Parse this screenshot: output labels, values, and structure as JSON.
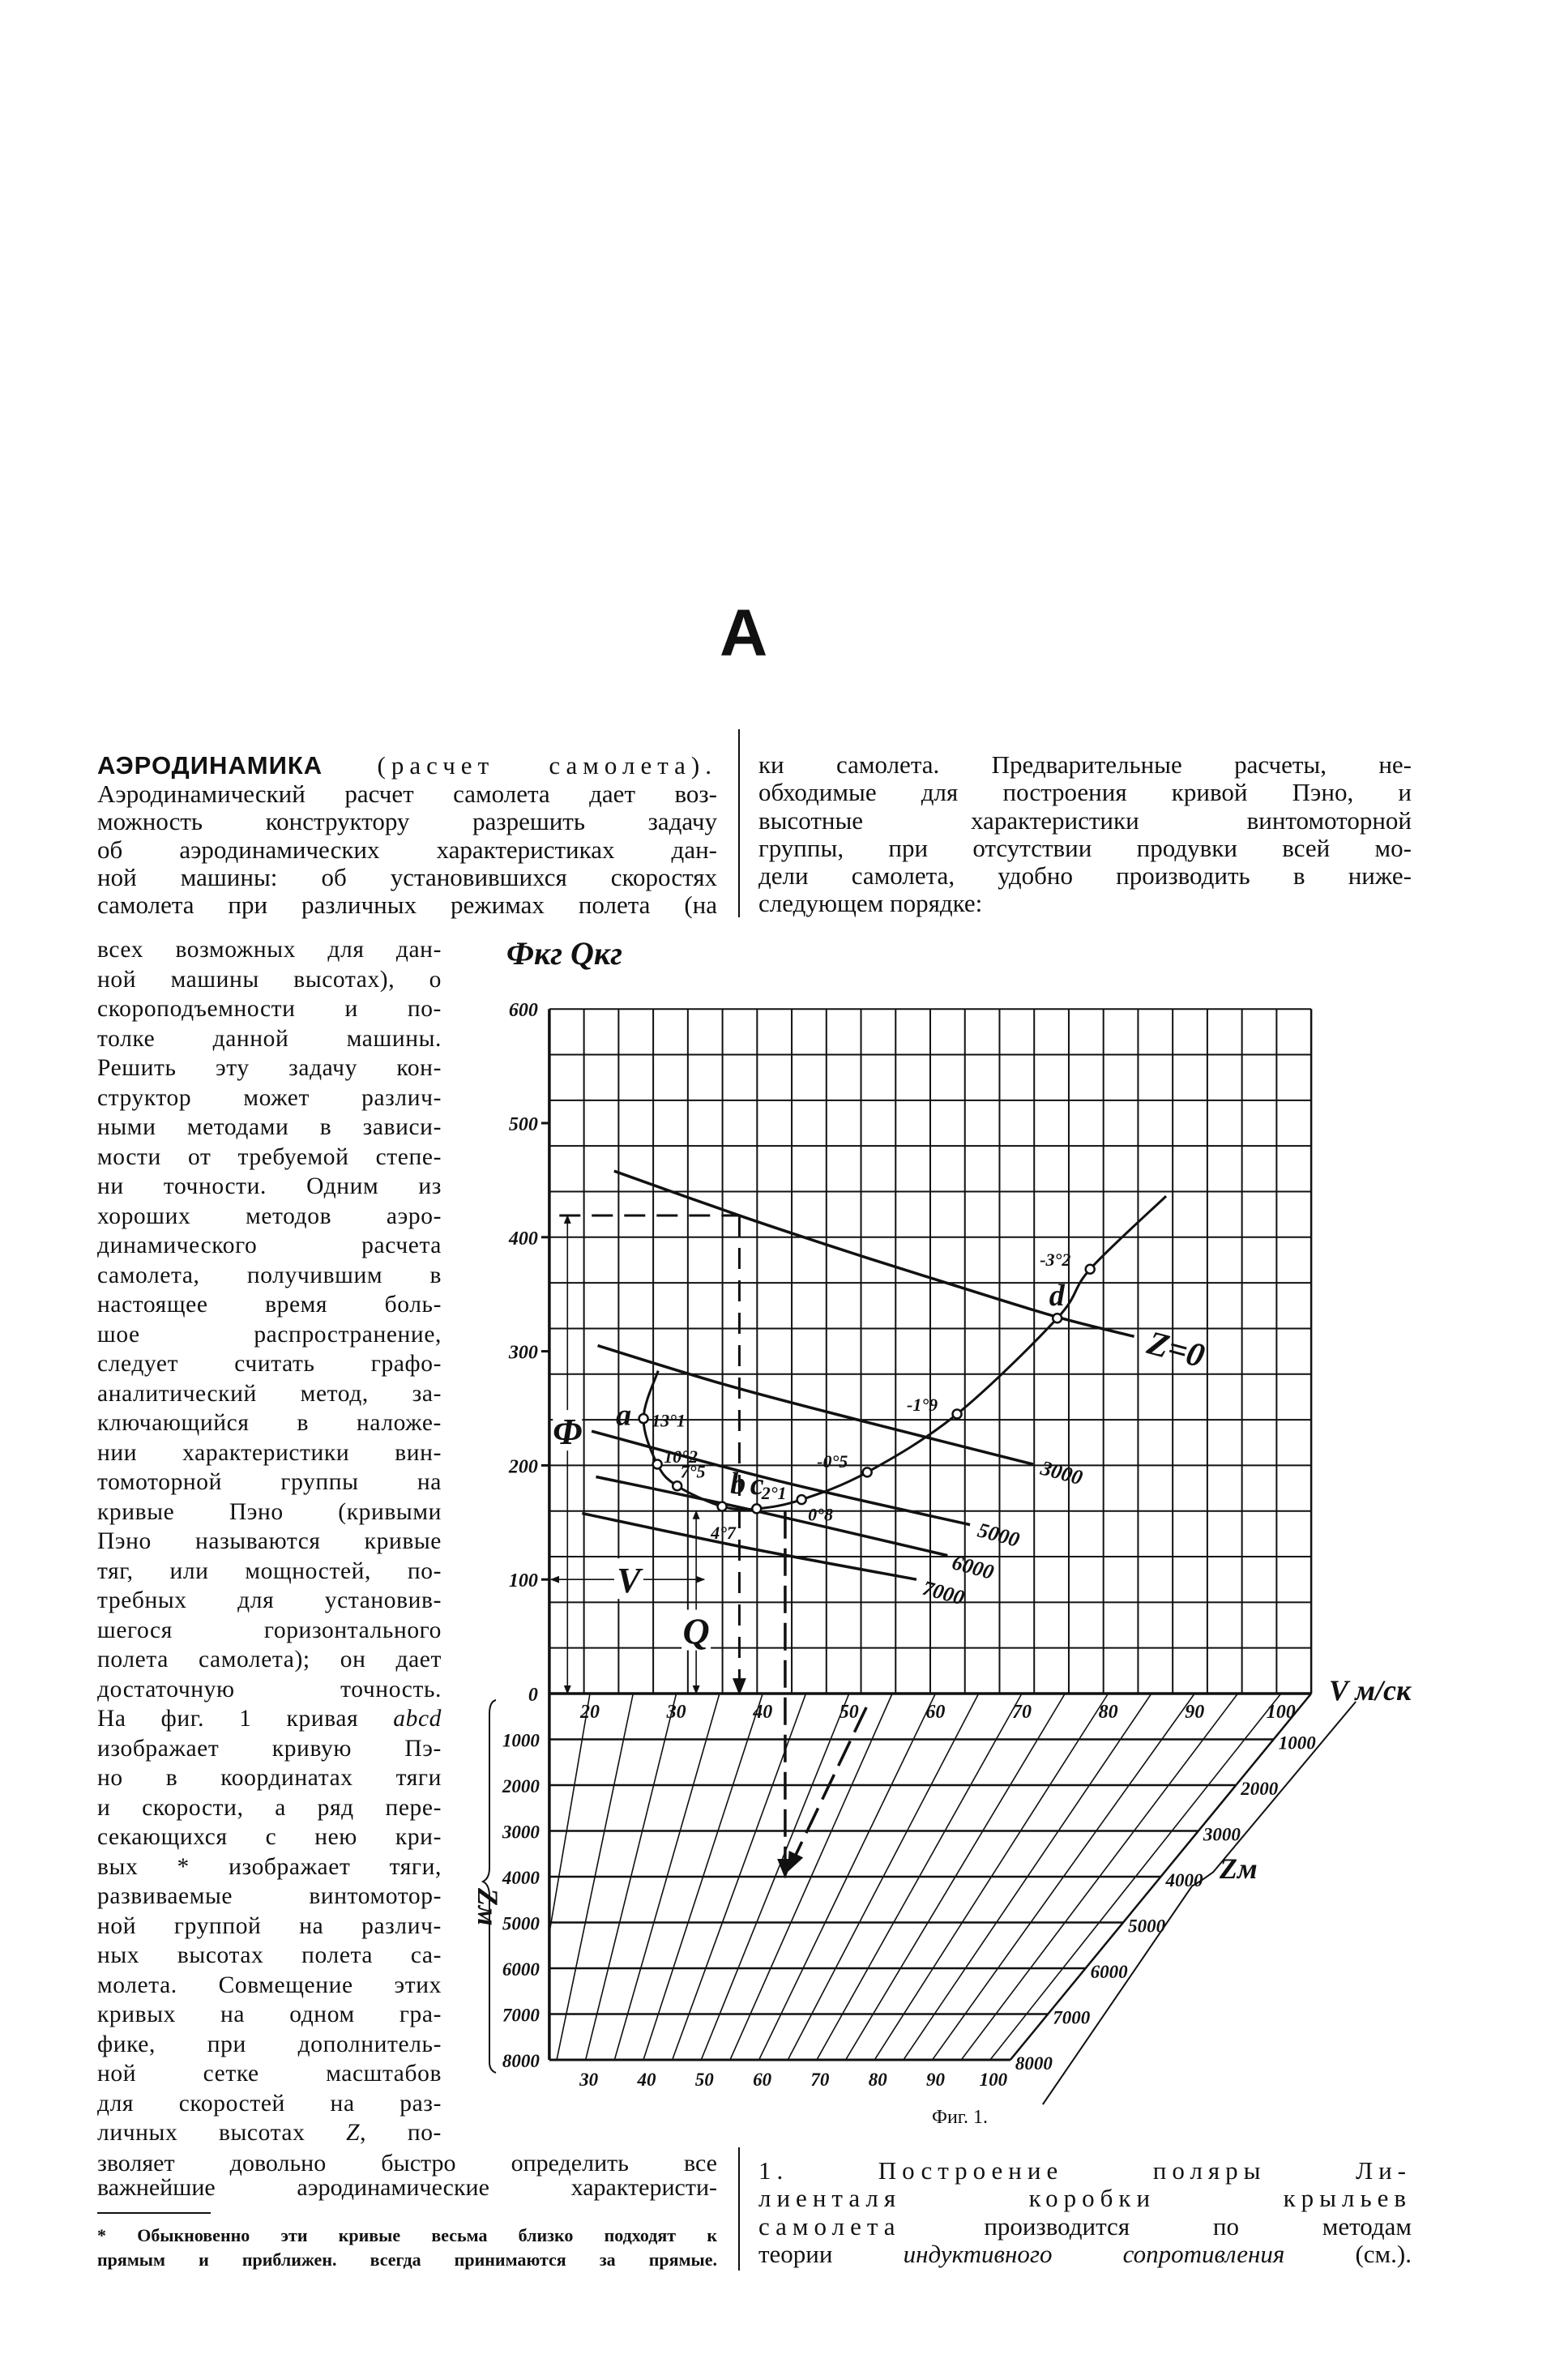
{
  "page": {
    "section_letter": "А"
  },
  "article": {
    "left_top_lines": [
      {
        "bold": "АЭРОДИНАМИКА",
        "sp": " (расчет самолета)."
      },
      "Аэродинамический расчет самолета дает воз-",
      "можность конструктору разрешить задачу",
      "об аэродинамических характеристиках дан-",
      "ной машины: об установившихся скоростях",
      "самолета при различных режимах полета (на"
    ],
    "narrow_lines": [
      "всех возможных для дан-",
      "ной машины высотах), о",
      "скороподъемности и по-",
      "толке данной машины.",
      "Решить эту задачу кон-",
      "структор может различ-",
      "ными методами в зависи-",
      "мости от требуемой степе-",
      "ни точности. Одним из",
      "хороших методов аэро-",
      "динамического расчета",
      "самолета, получившим в",
      "настоящее время боль-",
      "шое распространение,",
      "следует считать графо-",
      "аналитический метод, за-",
      "ключающийся в наложе-",
      "нии характеристики вин-",
      "томоторной группы на",
      "кривые Пэно (кривыми",
      "Пэно называются кривые",
      "тяг, или мощностей, по-",
      "требных для установив-",
      "шегося горизонтального",
      "полета самолета); он дает",
      "достаточную точность.",
      {
        "pre": "На фиг. 1 кривая ",
        "em": "abcd"
      },
      "изображает кривую Пэ-",
      "но в координатах тяги",
      "и скорости, а ряд пере-",
      "секающихся с нею кри-",
      "вых * изображает тяги,",
      "развиваемые винтомотор-",
      "ной группой на различ-",
      "ных высотах полета са-",
      "молета. Совмещение этих",
      "кривых на одном гра-",
      "фике, при дополнитель-",
      "ной сетке масштабов",
      "для скоростей на раз-",
      {
        "pre": "личных высотах ",
        "em": "Z",
        "post": ", по-"
      }
    ],
    "left_bottom_lines": [
      "зволяет довольно быстро определить все",
      "важнейшие аэродинамические характеристи-"
    ],
    "footnote_lines": [
      "* Обыкновенно эти кривые весьма близко подходят к",
      "прямым и приближен. всегда принимаются за прямые."
    ],
    "right_top_lines": [
      "ки самолета. Предварительные расчеты, не-",
      "обходимые для построения кривой Пэно, и",
      "высотные характеристики винтомоторной",
      "группы, при отсутствии продувки всей мо-",
      "дели самолета, удобно производить в ниже-",
      "следующем порядке:"
    ],
    "right_bottom_lines": [
      {
        "sp": "1. Построение поляры Ли-"
      },
      {
        "sp": "лиенталя коробки крыльев"
      },
      {
        "sp": "самолета",
        "pre": " производится по методам"
      },
      {
        "pre": "теории ",
        "em": "индуктивного сопротивления",
        "post": " (см.)."
      }
    ]
  },
  "figure": {
    "caption": "Фиг. 1."
  },
  "chart_data": {
    "type": "line",
    "title": "",
    "ylabel": "Фкг Qкг",
    "xlabel": "V м/ск",
    "zlabel": "Zм",
    "xlim": [
      15.3,
      103.5
    ],
    "ylim": [
      0,
      600
    ],
    "zlim": [
      0,
      8000
    ],
    "grid": true,
    "yticks": [
      0,
      100,
      200,
      300,
      400,
      500,
      600
    ],
    "xticks": [
      20,
      30,
      40,
      50,
      60,
      70,
      80,
      90,
      100
    ],
    "zticks": [
      1000,
      2000,
      3000,
      4000,
      5000,
      6000,
      7000,
      8000
    ],
    "bottom_xticks": [
      30,
      40,
      50,
      60,
      70,
      80,
      90,
      100
    ],
    "series": [
      {
        "name": "Z=0",
        "points": [
          [
            22.8,
            458
          ],
          [
            37.3,
            419
          ],
          [
            50,
            387
          ],
          [
            62.5,
            357
          ],
          [
            74.1,
            330
          ],
          [
            83,
            313
          ]
        ]
      },
      {
        "name": "3000",
        "points": [
          [
            20.9,
            305
          ],
          [
            36,
            270
          ],
          [
            52,
            238
          ],
          [
            71.3,
            201
          ]
        ]
      },
      {
        "name": "5000",
        "points": [
          [
            20.2,
            230
          ],
          [
            42,
            186
          ],
          [
            64,
            148
          ]
        ]
      },
      {
        "name": "6000",
        "points": [
          [
            20.7,
            190
          ],
          [
            38.1,
            162
          ],
          [
            61.4,
            121
          ]
        ]
      },
      {
        "name": "7000",
        "points": [
          [
            19.1,
            158
          ],
          [
            38,
            128
          ],
          [
            57.8,
            100
          ]
        ]
      }
    ],
    "penaud_curve": {
      "points": [
        [
          27.9,
          283
        ],
        [
          26.2,
          241
        ],
        [
          27.8,
          201
        ],
        [
          30.1,
          182
        ],
        [
          35.3,
          164
        ],
        [
          39.3,
          162
        ],
        [
          44.5,
          170
        ],
        [
          52.1,
          194
        ],
        [
          62.5,
          245
        ],
        [
          74.1,
          329
        ],
        [
          77.9,
          372
        ],
        [
          86.7,
          436
        ]
      ],
      "marked_points": [
        {
          "v": 26.2,
          "f": 241,
          "letter": "a",
          "angle": "13°1"
        },
        {
          "v": 27.8,
          "f": 201,
          "letter": "",
          "angle": "10°2"
        },
        {
          "v": 30.1,
          "f": 182,
          "letter": "",
          "angle": "7°5"
        },
        {
          "v": 35.3,
          "f": 164,
          "letter": "b",
          "angle": "4°7"
        },
        {
          "v": 39.3,
          "f": 162,
          "letter": "c",
          "angle": "2°1"
        },
        {
          "v": 44.5,
          "f": 170,
          "letter": "",
          "angle": "0°8"
        },
        {
          "v": 52.1,
          "f": 194,
          "letter": "",
          "angle": "-0°5"
        },
        {
          "v": 62.5,
          "f": 245,
          "letter": "",
          "angle": "-1°9"
        },
        {
          "v": 74.1,
          "f": 329,
          "letter": "d",
          "angle": ""
        },
        {
          "v": 77.9,
          "f": 372,
          "letter": "",
          "angle": "-3°2"
        }
      ]
    },
    "guides": {
      "thrust_level": 419,
      "thrust_speed": 37.3,
      "phi_speed": 17.4,
      "q_speed": 32.3,
      "q_level": 160,
      "v_level": 100,
      "c_speed": 42.6,
      "c_altitude": 4000,
      "c_ground_speed": 52
    },
    "annotations": {
      "phi": "Φ",
      "v": "V",
      "q": "Q"
    }
  }
}
